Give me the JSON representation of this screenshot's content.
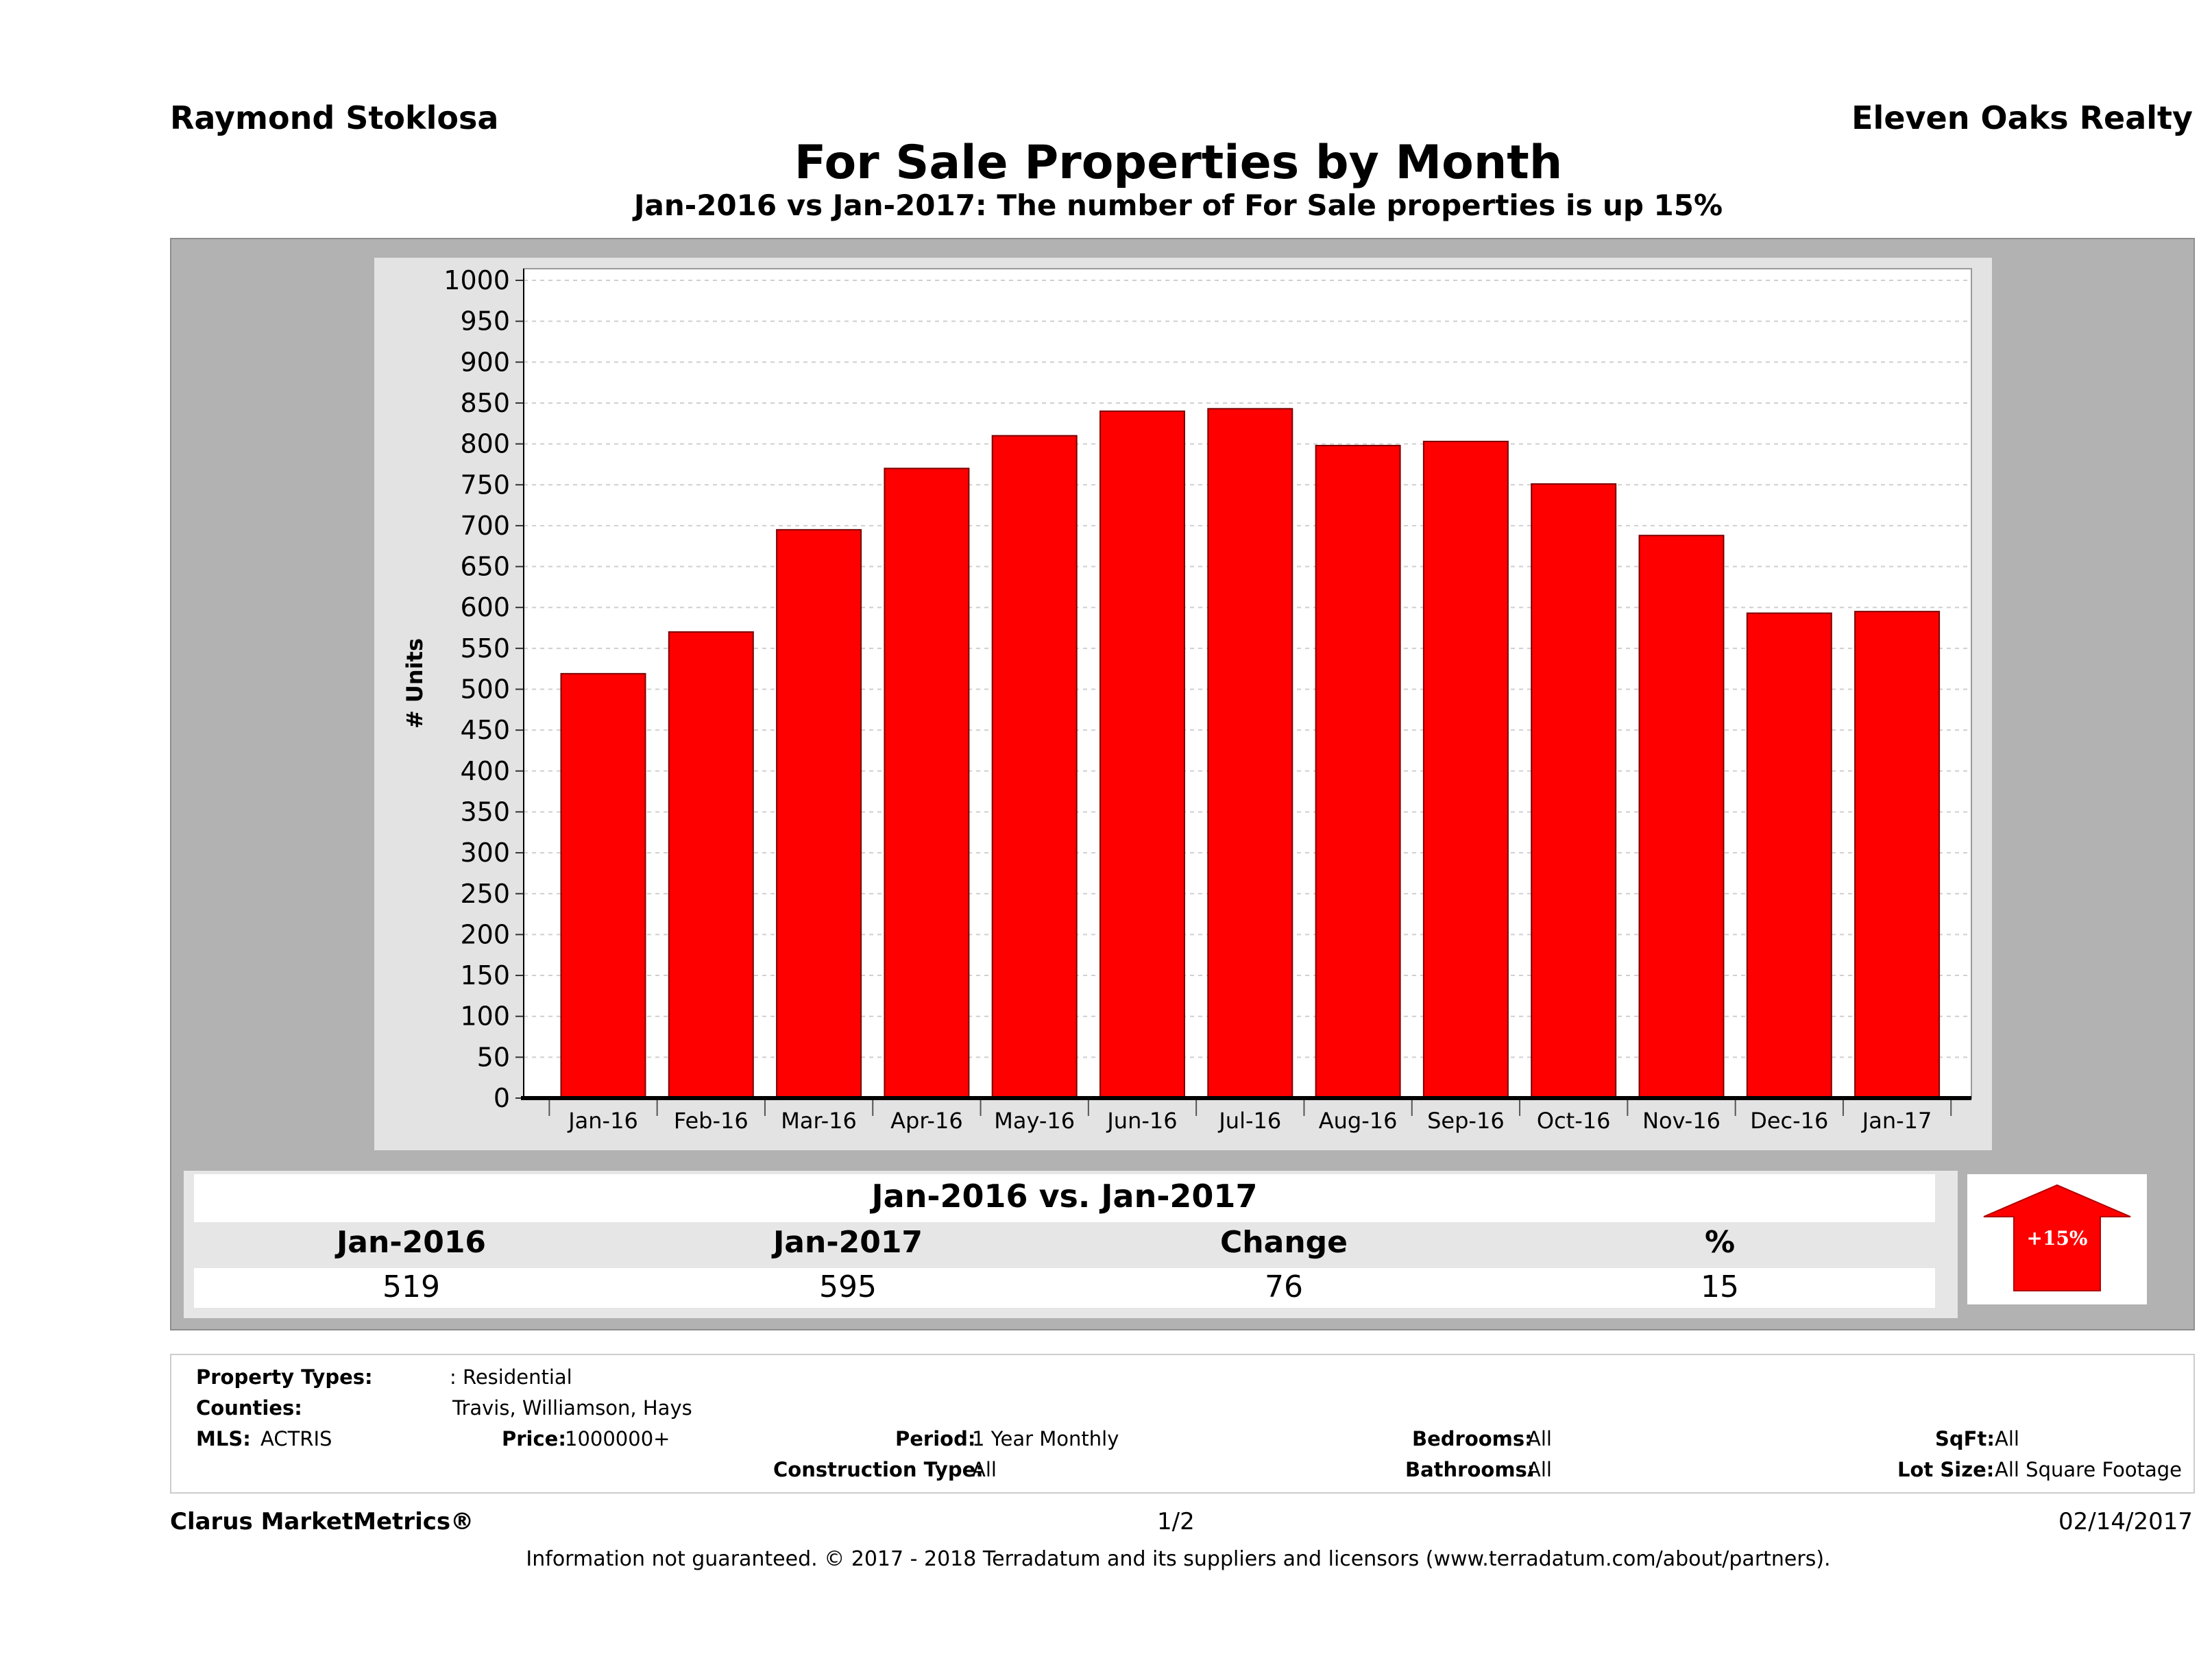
{
  "header": {
    "agent": "Raymond Stoklosa",
    "company": "Eleven Oaks Realty",
    "title": "For Sale Properties by Month",
    "subtitle": "Jan-2016 vs Jan-2017: The number of For Sale  properties is up 15%"
  },
  "chart_data": {
    "type": "bar",
    "categories": [
      "Jan-16",
      "Feb-16",
      "Mar-16",
      "Apr-16",
      "May-16",
      "Jun-16",
      "Jul-16",
      "Aug-16",
      "Sep-16",
      "Oct-16",
      "Nov-16",
      "Dec-16",
      "Jan-17"
    ],
    "values": [
      519,
      570,
      695,
      770,
      810,
      840,
      843,
      798,
      803,
      751,
      688,
      593,
      595
    ],
    "ylabel": "# Units",
    "ylim": [
      0,
      1000
    ],
    "yticks": [
      0,
      50,
      100,
      150,
      200,
      250,
      300,
      350,
      400,
      450,
      500,
      550,
      600,
      650,
      700,
      750,
      800,
      850,
      900,
      950,
      1000
    ],
    "grid": true,
    "bar_color": "#ff0000"
  },
  "summary": {
    "title": "Jan-2016 vs. Jan-2017",
    "headers": [
      "Jan-2016",
      "Jan-2017",
      "Change",
      "%"
    ],
    "values": [
      "519",
      "595",
      "76",
      "15"
    ],
    "badge": "+15%",
    "badge_color": "#ff0000"
  },
  "info": {
    "property_types_label": "Property Types:",
    "property_types_value": ": Residential",
    "counties_label": "Counties:",
    "counties_value": "Travis, Williamson, Hays",
    "mls_label": "MLS:",
    "mls_value": "ACTRIS",
    "price_label": "Price:",
    "price_value": "1000000+",
    "period_label": "Period:",
    "period_value": "1 Year Monthly",
    "construction_label": "Construction Type:",
    "construction_value": "All",
    "bedrooms_label": "Bedrooms:",
    "bedrooms_value": "All",
    "bathrooms_label": "Bathrooms:",
    "bathrooms_value": "All",
    "sqft_label": "SqFt:",
    "sqft_value": "All",
    "lotsize_label": "Lot Size:",
    "lotsize_value": "All Square Footage"
  },
  "footer": {
    "brand": "Clarus MarketMetrics®",
    "page": "1/2",
    "date": "02/14/2017",
    "disclaimer": "Information not guaranteed. © 2017 - 2018 Terradatum and its suppliers and licensors (www.terradatum.com/about/partners)."
  }
}
